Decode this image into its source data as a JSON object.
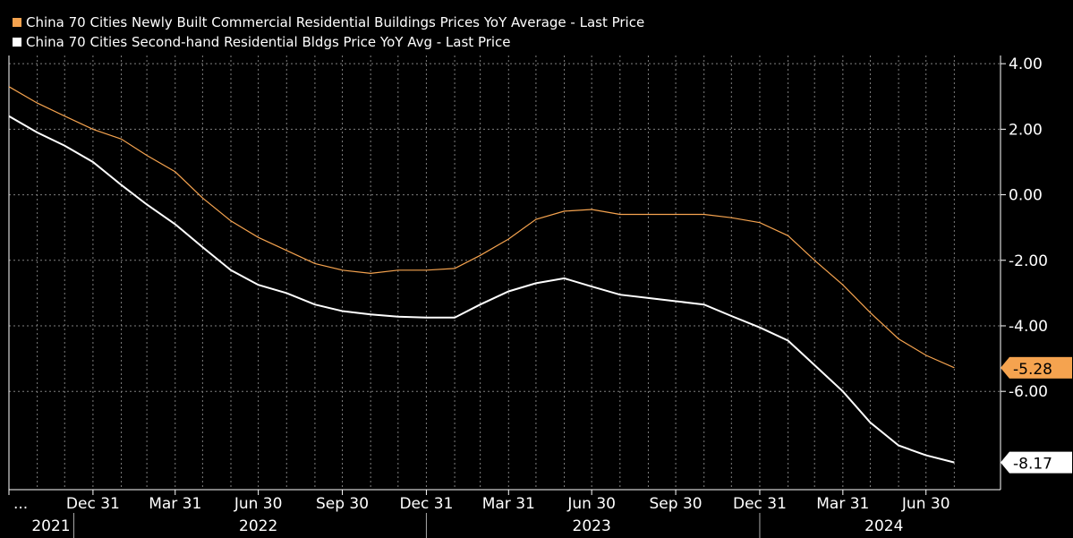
{
  "legend": {
    "series1": "China 70 Cities Newly Built Commercial Residential Buildings Prices YoY Average - Last Price",
    "series2": "China 70 Cities Second-hand Residential Bldgs Price YoY Avg - Last Price"
  },
  "colors": {
    "background": "#000000",
    "grid": "#7f7f7f",
    "series1": "#f5a34f",
    "series2": "#ffffff"
  },
  "chart_data": {
    "type": "line",
    "title": "",
    "xlabel": "",
    "ylabel": "",
    "ylim": [
      -9.0,
      4.25
    ],
    "y_ticks": [
      "4.00",
      "2.00",
      "0.00",
      "-2.00",
      "-4.00",
      "-6.00"
    ],
    "y_tick_values": [
      4,
      2,
      0,
      -2,
      -4,
      -6
    ],
    "x_range": [
      "2021-09-30",
      "2024-08-31"
    ],
    "x_ticks": [
      {
        "label": "...",
        "date": "2021-09-30"
      },
      {
        "label": "Dec 31",
        "date": "2021-12-31"
      },
      {
        "label": "Mar 31",
        "date": "2022-03-31"
      },
      {
        "label": "Jun 30",
        "date": "2022-06-30"
      },
      {
        "label": "Sep 30",
        "date": "2022-09-30"
      },
      {
        "label": "Dec 31",
        "date": "2022-12-31"
      },
      {
        "label": "Mar 31",
        "date": "2023-03-31"
      },
      {
        "label": "Jun 30",
        "date": "2023-06-30"
      },
      {
        "label": "Sep 30",
        "date": "2023-09-30"
      },
      {
        "label": "Dec 31",
        "date": "2023-12-31"
      },
      {
        "label": "Mar 31",
        "date": "2024-03-31"
      },
      {
        "label": "Jun 30",
        "date": "2024-06-30"
      }
    ],
    "years": [
      {
        "label": "2021",
        "date": "2021-10-15"
      },
      {
        "label": "2022",
        "date": "2022-06-30"
      },
      {
        "label": "2023",
        "date": "2023-06-30"
      },
      {
        "label": "2024",
        "date": "2024-05-15"
      }
    ],
    "year_dividers": [
      "2021-12-10",
      "2022-12-31",
      "2023-12-31"
    ],
    "x": [
      "2021-09-30",
      "2021-10-31",
      "2021-11-30",
      "2021-12-31",
      "2022-01-31",
      "2022-02-28",
      "2022-03-31",
      "2022-04-30",
      "2022-05-31",
      "2022-06-30",
      "2022-07-31",
      "2022-08-31",
      "2022-09-30",
      "2022-10-31",
      "2022-11-30",
      "2022-12-31",
      "2023-01-31",
      "2023-02-28",
      "2023-03-31",
      "2023-04-30",
      "2023-05-31",
      "2023-06-30",
      "2023-07-31",
      "2023-08-31",
      "2023-09-30",
      "2023-10-31",
      "2023-11-30",
      "2023-12-31",
      "2024-01-31",
      "2024-02-29",
      "2024-03-31",
      "2024-04-30",
      "2024-05-31",
      "2024-06-30",
      "2024-07-31"
    ],
    "series": [
      {
        "name": "China 70 Cities Newly Built Commercial Residential Buildings Prices YoY Average - Last Price",
        "color": "#f5a34f",
        "last_value": "-5.28",
        "values": [
          3.3,
          2.8,
          2.4,
          2.0,
          1.7,
          1.2,
          0.7,
          -0.1,
          -0.8,
          -1.3,
          -1.7,
          -2.1,
          -2.3,
          -2.4,
          -2.3,
          -2.3,
          -2.25,
          -1.85,
          -1.35,
          -0.75,
          -0.5,
          -0.45,
          -0.6,
          -0.6,
          -0.6,
          -0.6,
          -0.7,
          -0.85,
          -1.25,
          -2.0,
          -2.75,
          -3.6,
          -4.4,
          -4.9,
          -5.28
        ]
      },
      {
        "name": "China 70 Cities Second-hand Residential Bldgs Price YoY Avg - Last Price",
        "color": "#ffffff",
        "last_value": "-8.17",
        "values": [
          2.4,
          1.9,
          1.5,
          1.0,
          0.3,
          -0.3,
          -0.9,
          -1.6,
          -2.3,
          -2.75,
          -3.0,
          -3.35,
          -3.55,
          -3.65,
          -3.72,
          -3.75,
          -3.75,
          -3.35,
          -2.95,
          -2.7,
          -2.55,
          -2.8,
          -3.05,
          -3.15,
          -3.25,
          -3.35,
          -3.7,
          -4.05,
          -4.45,
          -5.2,
          -6.0,
          -6.95,
          -7.65,
          -7.95,
          -8.17
        ]
      }
    ]
  }
}
